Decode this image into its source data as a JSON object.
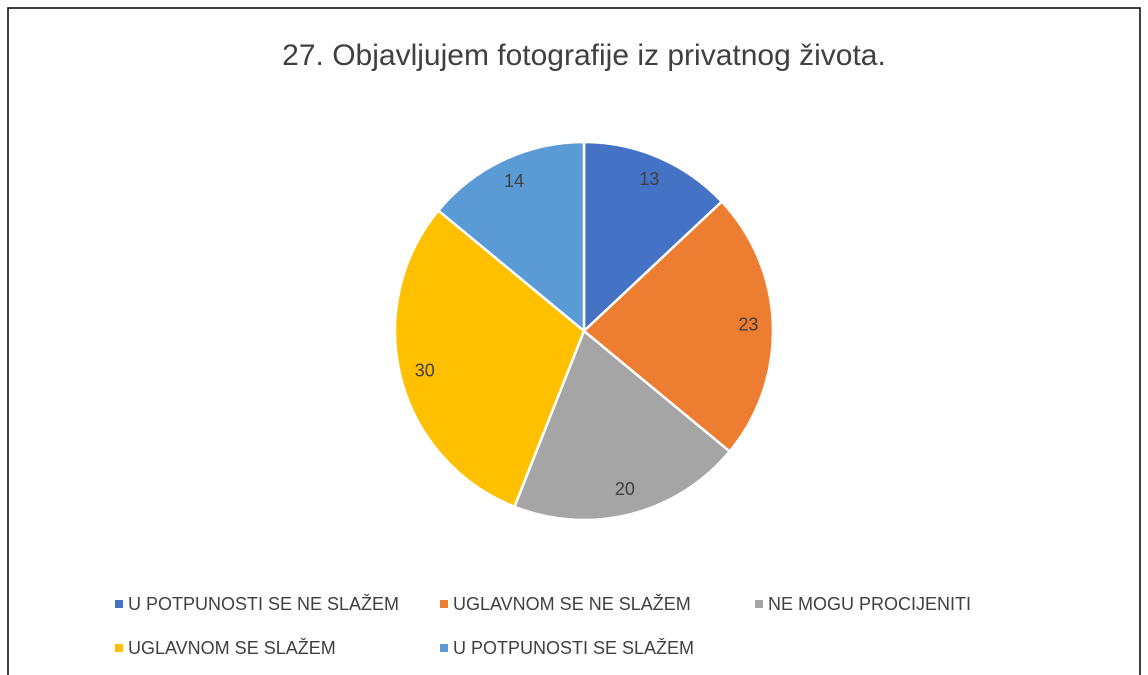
{
  "chart_data": {
    "type": "pie",
    "title": "27. Objavljujem fotografije iz privatnog života.",
    "categories": [
      "U POTPUNOSTI SE NE SLAŽEM",
      "UGLAVNOM SE NE SLAŽEM",
      "NE MOGU PROCIJENITI",
      "UGLAVNOM SE SLAŽEM",
      "U POTPUNOSTI SE SLAŽEM"
    ],
    "values": [
      13,
      23,
      20,
      30,
      14
    ],
    "colors": [
      "#4472c4",
      "#ed7d31",
      "#a5a5a5",
      "#ffc000",
      "#5b9bd5"
    ],
    "legend": "bottom"
  }
}
